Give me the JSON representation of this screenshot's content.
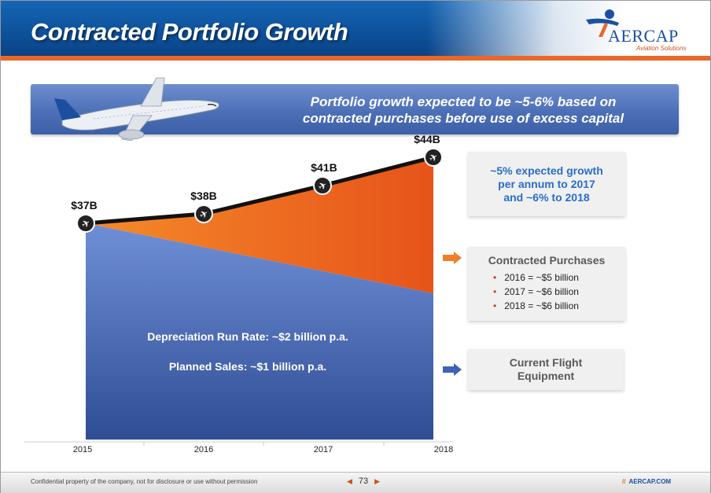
{
  "header": {
    "title": "Contracted Portfolio Growth"
  },
  "logo": {
    "text": "AERCAP",
    "subtitle": "Aviation Solutions"
  },
  "banner": {
    "line1": "Portfolio growth expected to be ~5-6% based on",
    "line2": "contracted purchases before use of excess capital"
  },
  "chart_data": {
    "type": "area",
    "x": [
      "2015",
      "2016",
      "2017",
      "2018"
    ],
    "series": [
      {
        "name": "Current Flight Equipment",
        "values": [
          37,
          null,
          null,
          25
        ]
      },
      {
        "name": "Contracted Purchases",
        "values": [
          0,
          null,
          null,
          19
        ]
      }
    ],
    "total_labels": [
      "$37B",
      "$38B",
      "$41B",
      "$44B"
    ],
    "totals": [
      37,
      38,
      41,
      44
    ],
    "annotations": [
      "Depreciation Run Rate: ~$2 billion p.a.",
      "Planned Sales: ~$1 billion p.a."
    ],
    "colors": {
      "current": "#4a6fc0",
      "purchases": "#f06a1a",
      "line": "#111111"
    }
  },
  "callouts": {
    "growth": {
      "line1": "~5% expected growth",
      "line2": "per annum to 2017",
      "line3": "and ~6% to 2018"
    },
    "purchases": {
      "title": "Contracted Purchases",
      "items": [
        "2016 = ~$5 billion",
        "2017 = ~$6 billion",
        "2018 = ~$6 billion"
      ]
    },
    "equipment": {
      "line1": "Current Flight",
      "line2": "Equipment"
    }
  },
  "footer": {
    "confidential": "Confidential property of the company, not for disclosure or use without permission",
    "page": "73",
    "url": "AERCAP.COM"
  },
  "accent": {
    "orange": "#e8682a",
    "blue": "#1c4fa0"
  }
}
